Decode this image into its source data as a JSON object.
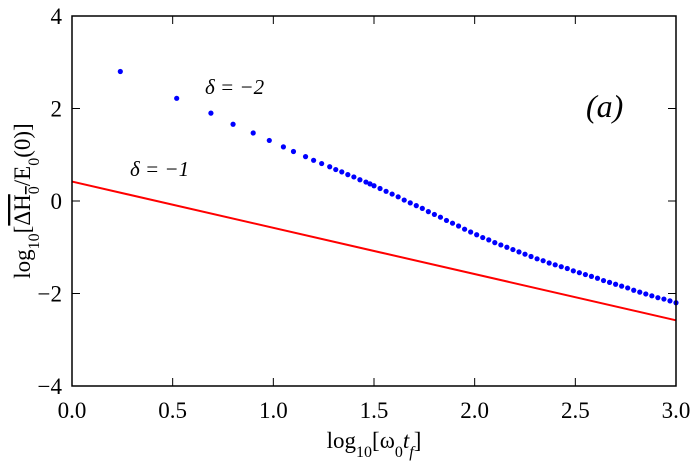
{
  "chart_data": {
    "type": "scatter",
    "xlabel": [
      {
        "text": "log"
      },
      {
        "text": "10",
        "sub": true
      },
      {
        "text": "[ω"
      },
      {
        "text": "0",
        "sub": true
      },
      {
        "text": "t",
        "italic": true
      },
      {
        "text": "f",
        "sub": true,
        "italic": true
      },
      {
        "text": "]"
      }
    ],
    "ylabel": [
      {
        "text": "log"
      },
      {
        "text": "10",
        "sub": true
      },
      {
        "text": "["
      },
      {
        "text": "ΔH",
        "overline": true
      },
      {
        "text": "0",
        "sub": true,
        "overline": true
      },
      {
        "text": "/E"
      },
      {
        "text": "0",
        "sub": true
      },
      {
        "text": "(0)]"
      }
    ],
    "annotations": [
      "δ = −2",
      "δ = −1",
      "(a)"
    ],
    "xlim": [
      0,
      3
    ],
    "ylim": [
      -4,
      4
    ],
    "xticks": [
      {
        "value": 0,
        "label": "0.0"
      },
      {
        "value": 0.5,
        "label": "0.5"
      },
      {
        "value": 1,
        "label": "1.0"
      },
      {
        "value": 1.5,
        "label": "1.5"
      },
      {
        "value": 2,
        "label": "2.0"
      },
      {
        "value": 2.5,
        "label": "2.5"
      },
      {
        "value": 3,
        "label": "3.0"
      }
    ],
    "yticks": [
      {
        "value": -4,
        "label": "−4"
      },
      {
        "value": -2,
        "label": "−2"
      },
      0,
      2,
      4
    ],
    "series": [
      {
        "type": "scatter",
        "color": "#0000ff",
        "x": [
          0.24,
          0.52,
          0.69,
          0.8,
          0.9,
          0.98,
          1.05,
          1.1,
          1.16,
          1.2,
          1.24,
          1.28,
          1.31,
          1.34,
          1.37,
          1.4,
          1.43,
          1.46,
          1.48,
          1.5,
          1.53,
          1.56,
          1.59,
          1.62,
          1.65,
          1.68,
          1.71,
          1.74,
          1.77,
          1.8,
          1.83,
          1.86,
          1.89,
          1.92,
          1.95,
          1.98,
          2.01,
          2.04,
          2.07,
          2.1,
          2.13,
          2.16,
          2.19,
          2.22,
          2.25,
          2.28,
          2.31,
          2.34,
          2.37,
          2.4,
          2.43,
          2.46,
          2.49,
          2.52,
          2.55,
          2.58,
          2.61,
          2.64,
          2.67,
          2.7,
          2.73,
          2.76,
          2.79,
          2.82,
          2.85,
          2.88,
          2.91,
          2.94,
          2.97,
          3.0
        ],
        "values": [
          2.8,
          2.22,
          1.9,
          1.66,
          1.47,
          1.31,
          1.17,
          1.07,
          0.96,
          0.88,
          0.81,
          0.74,
          0.68,
          0.63,
          0.57,
          0.52,
          0.46,
          0.41,
          0.37,
          0.33,
          0.27,
          0.21,
          0.15,
          0.09,
          0.02,
          -0.04,
          -0.1,
          -0.16,
          -0.23,
          -0.29,
          -0.35,
          -0.42,
          -0.48,
          -0.54,
          -0.61,
          -0.67,
          -0.73,
          -0.79,
          -0.84,
          -0.9,
          -0.95,
          -1.0,
          -1.05,
          -1.1,
          -1.15,
          -1.2,
          -1.25,
          -1.29,
          -1.34,
          -1.38,
          -1.42,
          -1.46,
          -1.51,
          -1.55,
          -1.59,
          -1.63,
          -1.67,
          -1.72,
          -1.76,
          -1.8,
          -1.84,
          -1.88,
          -1.93,
          -1.97,
          -2.01,
          -2.05,
          -2.09,
          -2.12,
          -2.16,
          -2.2
        ]
      },
      {
        "type": "line",
        "color": "#ff0000",
        "x": [
          0,
          3
        ],
        "values": [
          0.42,
          -2.58
        ]
      }
    ]
  }
}
